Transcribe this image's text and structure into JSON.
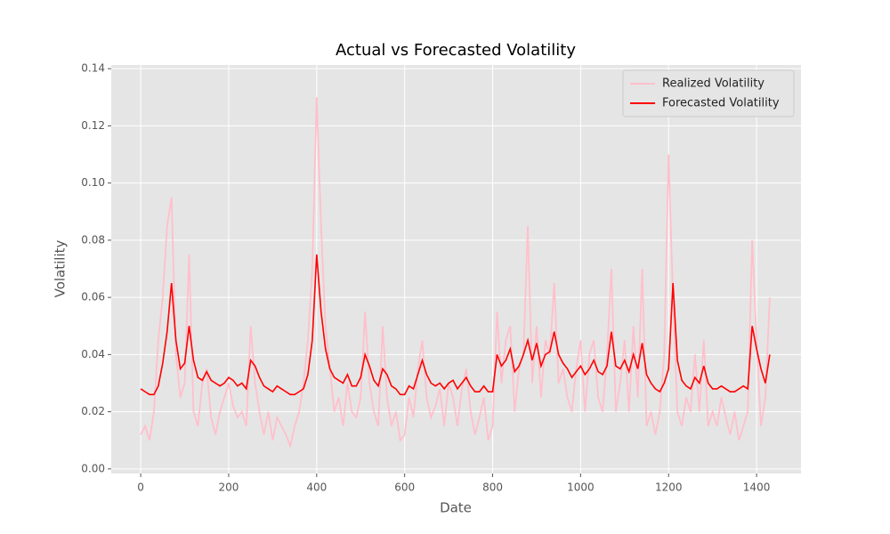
{
  "chart_data": {
    "type": "line",
    "title": "Actual vs Forecasted Volatility",
    "x_label": "Date",
    "y_label": "Volatility",
    "x": [
      0,
      10,
      20,
      30,
      40,
      50,
      60,
      70,
      80,
      90,
      100,
      110,
      120,
      130,
      140,
      150,
      160,
      170,
      180,
      190,
      200,
      210,
      220,
      230,
      240,
      250,
      260,
      270,
      280,
      290,
      300,
      310,
      320,
      330,
      340,
      350,
      360,
      370,
      380,
      390,
      400,
      410,
      420,
      430,
      440,
      450,
      460,
      470,
      480,
      490,
      500,
      510,
      520,
      530,
      540,
      550,
      560,
      570,
      580,
      590,
      600,
      610,
      620,
      630,
      640,
      650,
      660,
      670,
      680,
      690,
      700,
      710,
      720,
      730,
      740,
      750,
      760,
      770,
      780,
      790,
      800,
      810,
      820,
      830,
      840,
      850,
      860,
      870,
      880,
      890,
      900,
      910,
      920,
      930,
      940,
      950,
      960,
      970,
      980,
      990,
      1000,
      1010,
      1020,
      1030,
      1040,
      1050,
      1060,
      1070,
      1080,
      1090,
      1100,
      1110,
      1120,
      1130,
      1140,
      1150,
      1160,
      1170,
      1180,
      1190,
      1200,
      1210,
      1220,
      1230,
      1240,
      1250,
      1260,
      1270,
      1280,
      1290,
      1300,
      1310,
      1320,
      1330,
      1340,
      1350,
      1360,
      1370,
      1380,
      1390,
      1400,
      1410,
      1420,
      1430
    ],
    "series": [
      {
        "name": "Realized Volatility",
        "color": "#ffc0cb",
        "values": [
          0.012,
          0.015,
          0.01,
          0.02,
          0.045,
          0.06,
          0.085,
          0.095,
          0.04,
          0.025,
          0.03,
          0.075,
          0.02,
          0.015,
          0.03,
          0.035,
          0.018,
          0.012,
          0.02,
          0.025,
          0.03,
          0.022,
          0.018,
          0.02,
          0.015,
          0.05,
          0.03,
          0.02,
          0.012,
          0.02,
          0.01,
          0.018,
          0.015,
          0.012,
          0.008,
          0.015,
          0.02,
          0.03,
          0.045,
          0.07,
          0.13,
          0.085,
          0.05,
          0.035,
          0.02,
          0.025,
          0.015,
          0.03,
          0.02,
          0.018,
          0.025,
          0.055,
          0.03,
          0.02,
          0.015,
          0.05,
          0.025,
          0.015,
          0.02,
          0.01,
          0.012,
          0.025,
          0.018,
          0.035,
          0.045,
          0.025,
          0.018,
          0.022,
          0.028,
          0.015,
          0.03,
          0.025,
          0.015,
          0.028,
          0.035,
          0.02,
          0.012,
          0.018,
          0.025,
          0.01,
          0.015,
          0.055,
          0.03,
          0.045,
          0.05,
          0.02,
          0.035,
          0.04,
          0.085,
          0.03,
          0.05,
          0.025,
          0.045,
          0.04,
          0.065,
          0.03,
          0.035,
          0.025,
          0.02,
          0.035,
          0.045,
          0.02,
          0.04,
          0.045,
          0.025,
          0.02,
          0.04,
          0.07,
          0.02,
          0.03,
          0.045,
          0.02,
          0.05,
          0.025,
          0.07,
          0.015,
          0.02,
          0.012,
          0.02,
          0.04,
          0.11,
          0.06,
          0.02,
          0.015,
          0.025,
          0.02,
          0.04,
          0.02,
          0.045,
          0.015,
          0.02,
          0.015,
          0.025,
          0.018,
          0.012,
          0.02,
          0.01,
          0.015,
          0.02,
          0.08,
          0.045,
          0.015,
          0.025,
          0.06
        ]
      },
      {
        "name": "Forecasted Volatility",
        "color": "#ff0000",
        "values": [
          0.028,
          0.027,
          0.026,
          0.026,
          0.029,
          0.037,
          0.048,
          0.065,
          0.045,
          0.035,
          0.037,
          0.05,
          0.038,
          0.032,
          0.031,
          0.034,
          0.031,
          0.03,
          0.029,
          0.03,
          0.032,
          0.031,
          0.029,
          0.03,
          0.028,
          0.038,
          0.036,
          0.032,
          0.029,
          0.028,
          0.027,
          0.029,
          0.028,
          0.027,
          0.026,
          0.026,
          0.027,
          0.028,
          0.033,
          0.045,
          0.075,
          0.055,
          0.042,
          0.035,
          0.032,
          0.031,
          0.03,
          0.033,
          0.029,
          0.029,
          0.032,
          0.04,
          0.036,
          0.031,
          0.029,
          0.035,
          0.033,
          0.029,
          0.028,
          0.026,
          0.026,
          0.029,
          0.028,
          0.033,
          0.038,
          0.033,
          0.03,
          0.029,
          0.03,
          0.028,
          0.03,
          0.031,
          0.028,
          0.03,
          0.032,
          0.029,
          0.027,
          0.027,
          0.029,
          0.027,
          0.027,
          0.04,
          0.036,
          0.038,
          0.042,
          0.034,
          0.036,
          0.04,
          0.045,
          0.038,
          0.044,
          0.036,
          0.04,
          0.041,
          0.048,
          0.04,
          0.037,
          0.035,
          0.032,
          0.034,
          0.036,
          0.033,
          0.035,
          0.038,
          0.034,
          0.033,
          0.036,
          0.048,
          0.036,
          0.035,
          0.038,
          0.034,
          0.04,
          0.035,
          0.044,
          0.033,
          0.03,
          0.028,
          0.027,
          0.03,
          0.035,
          0.065,
          0.038,
          0.031,
          0.029,
          0.028,
          0.032,
          0.03,
          0.036,
          0.03,
          0.028,
          0.028,
          0.029,
          0.028,
          0.027,
          0.027,
          0.028,
          0.029,
          0.028,
          0.05,
          0.042,
          0.035,
          0.03,
          0.04
        ]
      }
    ],
    "xlim": [
      -67,
      1501
    ],
    "ylim": [
      -0.0016,
      0.1413
    ],
    "xticks": [
      0,
      200,
      400,
      600,
      800,
      1000,
      1200,
      1400
    ],
    "yticks": [
      {
        "value": 0,
        "label": "0.00"
      },
      {
        "value": 0.02,
        "label": "0.02"
      },
      {
        "value": 0.04,
        "label": "0.04"
      },
      {
        "value": 0.06,
        "label": "0.06"
      },
      {
        "value": 0.08,
        "label": "0.08"
      },
      {
        "value": 0.1,
        "label": "0.10"
      },
      {
        "value": 0.12,
        "label": "0.12"
      },
      {
        "value": 0.14,
        "label": "0.14"
      }
    ],
    "grid": true,
    "legend": "upper right"
  }
}
